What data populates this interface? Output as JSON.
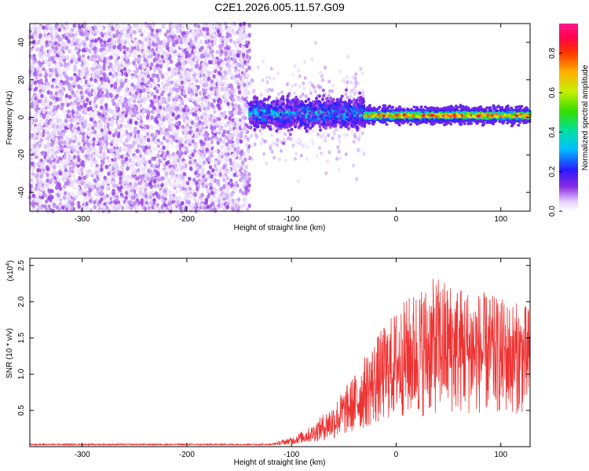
{
  "title": "C2E1.2026.005.11.57.G09",
  "colors": {
    "snr_line": "#ee3333",
    "axis": "#000000",
    "background": "#ffffff"
  },
  "chart_data": [
    {
      "type": "heatmap",
      "name": "spectrogram",
      "xlabel": "Height of straight line (km)",
      "ylabel": "Frequency (Hz)",
      "xlim": [
        -350,
        128
      ],
      "ylim": [
        -50,
        50
      ],
      "x_ticks": [
        -300,
        -200,
        -100,
        0,
        100
      ],
      "y_ticks": [
        -40,
        -20,
        0,
        20,
        40
      ],
      "colorbar": {
        "label": "Normalized spectral amplitude",
        "range": [
          0.0,
          0.95
        ],
        "ticks": [
          "0.0",
          "0.2",
          "0.4",
          "0.6",
          "0.8"
        ],
        "tick_values": [
          0.0,
          0.2,
          0.4,
          0.6,
          0.8
        ]
      },
      "regions": [
        {
          "x_range": [
            -350,
            -140
          ],
          "description": "broadband noise",
          "amplitude_range": [
            0.02,
            0.12
          ]
        },
        {
          "x_range": [
            -140,
            -30
          ],
          "description": "signal emerging",
          "center_freq": 2,
          "spread_hz": 6,
          "amplitude_range": [
            0.1,
            0.5
          ]
        },
        {
          "x_range": [
            -30,
            128
          ],
          "description": "stable carrier",
          "center_freq": 1,
          "spread_hz": 4,
          "amplitude_range": [
            0.2,
            0.95
          ]
        }
      ]
    },
    {
      "type": "line",
      "name": "snr",
      "xlabel": "Height of straight line (km)",
      "ylabel": "SNR (10 * v/v)",
      "scale_label_base": "(x10",
      "scale_label_exp": "4",
      "scale_label_end": ")",
      "xlim": [
        -350,
        128
      ],
      "ylim": [
        0,
        2.6
      ],
      "x_ticks": [
        -300,
        -200,
        -100,
        0,
        100
      ],
      "y_ticks": [
        0.5,
        1.0,
        1.5,
        2.0,
        2.5
      ],
      "envelope": {
        "x": [
          -350,
          -120,
          -100,
          -80,
          -60,
          -40,
          -20,
          0,
          20,
          40,
          60,
          80,
          100,
          128
        ],
        "mid": [
          0.03,
          0.03,
          0.08,
          0.18,
          0.35,
          0.6,
          0.9,
          1.15,
          1.3,
          1.4,
          1.35,
          1.3,
          1.25,
          1.2
        ],
        "amp": [
          0.01,
          0.01,
          0.05,
          0.12,
          0.25,
          0.4,
          0.6,
          0.75,
          0.9,
          0.95,
          0.9,
          0.85,
          0.8,
          0.75
        ]
      }
    }
  ]
}
